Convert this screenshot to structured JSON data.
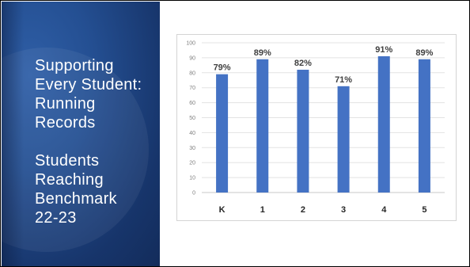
{
  "side_panel": {
    "title_lines": [
      "Supporting",
      "Every Student:",
      "Running",
      "Records"
    ],
    "subtitle_lines": [
      "Students",
      "Reaching",
      "Benchmark",
      "22-23"
    ]
  },
  "chart_data": {
    "type": "bar",
    "title": "",
    "xlabel": "",
    "ylabel": "",
    "categories": [
      "K",
      "1",
      "2",
      "3",
      "4",
      "5"
    ],
    "values": [
      79,
      89,
      82,
      71,
      91,
      89
    ],
    "data_labels": [
      "79%",
      "89%",
      "82%",
      "71%",
      "91%",
      "89%"
    ],
    "ylim": [
      0,
      100
    ],
    "yticks": [
      "0",
      "10",
      "20",
      "30",
      "40",
      "50",
      "60",
      "70",
      "80",
      "90",
      "100"
    ],
    "grid": true,
    "legend": "none",
    "bar_color": "#4472c4",
    "grid_color": "#e3e3e3"
  }
}
